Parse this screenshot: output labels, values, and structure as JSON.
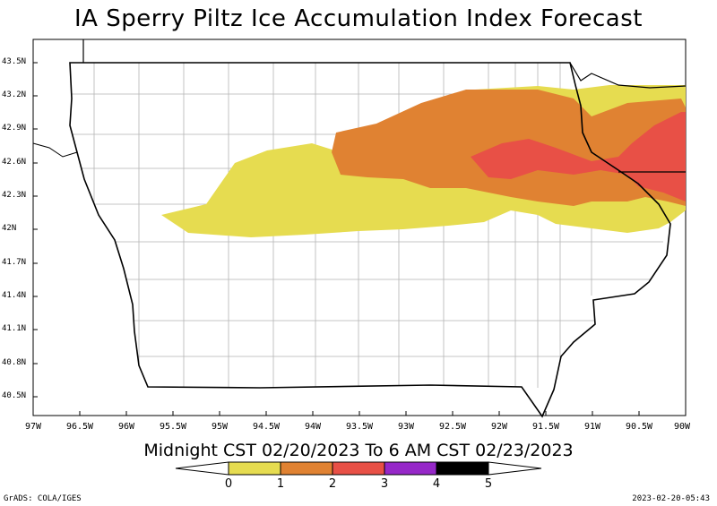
{
  "title": "IA Sperry Piltz Ice Accumulation Index Forecast",
  "period": "Midnight CST 02/20/2023 To 6 AM CST 02/23/2023",
  "lat_labels": [
    "43.5N",
    "43.2N",
    "42.9N",
    "42.6N",
    "42.3N",
    "42N",
    "41.7N",
    "41.4N",
    "41.1N",
    "40.8N",
    "40.5N"
  ],
  "lon_labels": [
    "97W",
    "96.5W",
    "96W",
    "95.5W",
    "95W",
    "94.5W",
    "94W",
    "93.5W",
    "93W",
    "92.5W",
    "92W",
    "91.5W",
    "91W",
    "90.5W",
    "90W"
  ],
  "colorbar": {
    "labels": [
      "0",
      "1",
      "2",
      "3",
      "4",
      "5"
    ],
    "colors": [
      "#e6dc50",
      "#e08232",
      "#e85046",
      "#9628c8",
      "#000000"
    ]
  },
  "credit_left": "GrADS: COLA/IGES",
  "credit_right": "2023-02-20-05:43"
}
